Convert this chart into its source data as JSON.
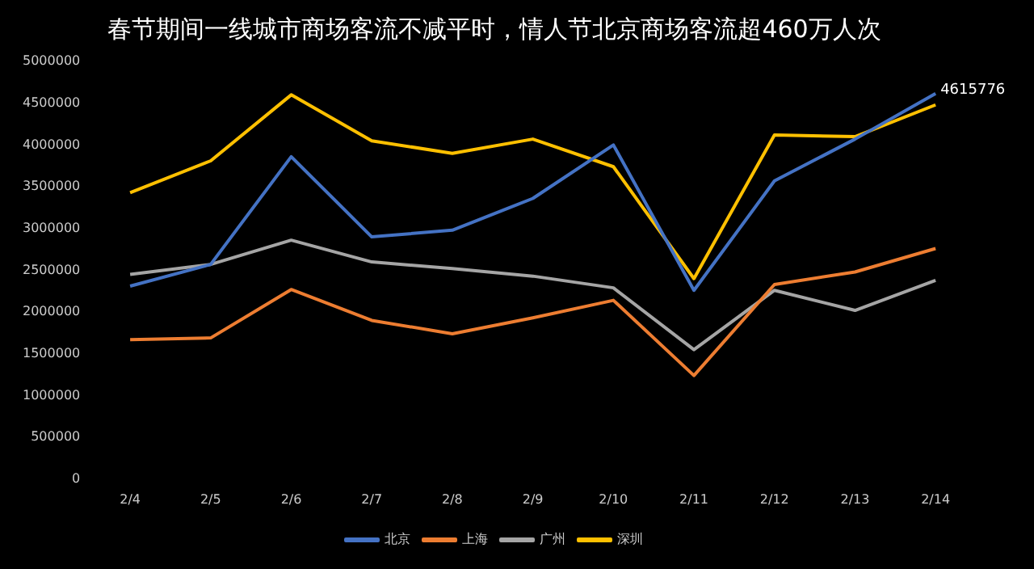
{
  "chart_data": {
    "type": "line",
    "title": "春节期间一线城市商场客流不减平时，情人节北京商场客流超460万人次",
    "categories": [
      "2/4",
      "2/5",
      "2/6",
      "2/7",
      "2/8",
      "2/9",
      "2/10",
      "2/11",
      "2/12",
      "2/13",
      "2/14"
    ],
    "series": [
      {
        "name": "北京",
        "color": "#4472c4",
        "values": [
          2310000,
          2570000,
          3860000,
          2900000,
          2980000,
          3360000,
          4000000,
          2260000,
          3570000,
          4070000,
          4615776
        ],
        "value_labels": [
          null,
          null,
          null,
          null,
          null,
          null,
          null,
          null,
          null,
          null,
          "4615776"
        ]
      },
      {
        "name": "上海",
        "color": "#ed7d31",
        "values": [
          1670000,
          1690000,
          2270000,
          1900000,
          1740000,
          1930000,
          2140000,
          1240000,
          2330000,
          2480000,
          2760000
        ]
      },
      {
        "name": "广州",
        "color": "#a5a5a5",
        "values": [
          2450000,
          2570000,
          2860000,
          2600000,
          2520000,
          2430000,
          2290000,
          1550000,
          2260000,
          2020000,
          2380000
        ]
      },
      {
        "name": "深圳",
        "color": "#ffc000",
        "values": [
          3430000,
          3810000,
          4600000,
          4050000,
          3900000,
          4070000,
          3740000,
          2400000,
          4120000,
          4100000,
          4480000
        ]
      }
    ],
    "ylim": [
      0,
      5000000
    ],
    "yticks": [
      0,
      500000,
      1000000,
      1500000,
      2000000,
      2500000,
      3000000,
      3500000,
      4000000,
      4500000,
      5000000
    ],
    "grid": false,
    "legend": "bottom",
    "marker": "none",
    "line_style": "solid"
  }
}
